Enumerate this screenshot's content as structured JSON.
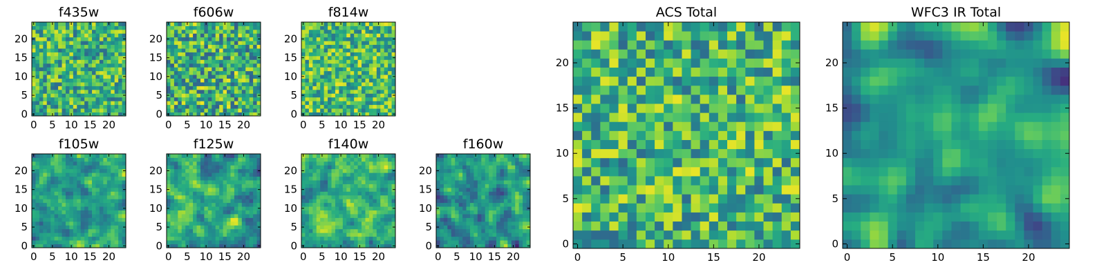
{
  "chart_data": [
    {
      "type": "heatmap",
      "title": "f435w",
      "xticks": [
        0,
        5,
        10,
        15,
        20
      ],
      "yticks": [
        0,
        5,
        10,
        15,
        20
      ],
      "xlim": [
        -0.5,
        24.5
      ],
      "ylim": [
        -0.5,
        24.5
      ],
      "grid": false,
      "colormap": "viridis",
      "seed": 11,
      "smooth": 0,
      "lo": 0.35,
      "hi": 0.95
    },
    {
      "type": "heatmap",
      "title": "f606w",
      "xticks": [
        0,
        5,
        10,
        15,
        20
      ],
      "yticks": [
        0,
        5,
        10,
        15,
        20
      ],
      "xlim": [
        -0.5,
        24.5
      ],
      "ylim": [
        -0.5,
        24.5
      ],
      "grid": false,
      "colormap": "viridis",
      "seed": 23,
      "smooth": 0,
      "lo": 0.3,
      "hi": 0.98
    },
    {
      "type": "heatmap",
      "title": "f814w",
      "xticks": [
        0,
        5,
        10,
        15,
        20
      ],
      "yticks": [
        0,
        5,
        10,
        15,
        20
      ],
      "xlim": [
        -0.5,
        24.5
      ],
      "ylim": [
        -0.5,
        24.5
      ],
      "grid": false,
      "colormap": "viridis",
      "seed": 37,
      "smooth": 0,
      "lo": 0.4,
      "hi": 0.98
    },
    {
      "type": "heatmap",
      "title": "f105w",
      "xticks": [
        0,
        5,
        10,
        15,
        20
      ],
      "yticks": [
        0,
        5,
        10,
        15,
        20
      ],
      "xlim": [
        -0.5,
        24.5
      ],
      "ylim": [
        -0.5,
        24.5
      ],
      "grid": false,
      "colormap": "viridis",
      "seed": 41,
      "smooth": 1,
      "lo": 0.25,
      "hi": 0.95
    },
    {
      "type": "heatmap",
      "title": "f125w",
      "xticks": [
        0,
        5,
        10,
        15,
        20
      ],
      "yticks": [
        0,
        5,
        10,
        15,
        20
      ],
      "xlim": [
        -0.5,
        24.5
      ],
      "ylim": [
        -0.5,
        24.5
      ],
      "grid": false,
      "colormap": "viridis",
      "seed": 53,
      "smooth": 1,
      "lo": 0.2,
      "hi": 0.97
    },
    {
      "type": "heatmap",
      "title": "f140w",
      "xticks": [
        0,
        5,
        10,
        15,
        20
      ],
      "yticks": [
        0,
        5,
        10,
        15,
        20
      ],
      "xlim": [
        -0.5,
        24.5
      ],
      "ylim": [
        -0.5,
        24.5
      ],
      "grid": false,
      "colormap": "viridis",
      "seed": 67,
      "smooth": 1,
      "lo": 0.3,
      "hi": 0.97
    },
    {
      "type": "heatmap",
      "title": "f160w",
      "xticks": [
        0,
        5,
        10,
        15,
        20
      ],
      "yticks": [
        0,
        5,
        10,
        15,
        20
      ],
      "xlim": [
        -0.5,
        24.5
      ],
      "ylim": [
        -0.5,
        24.5
      ],
      "grid": false,
      "colormap": "viridis",
      "seed": 79,
      "smooth": 1,
      "lo": 0.1,
      "hi": 0.92
    },
    {
      "type": "heatmap",
      "title": "ACS Total",
      "xticks": [
        0,
        5,
        10,
        15,
        20
      ],
      "yticks": [
        0,
        5,
        10,
        15,
        20
      ],
      "xlim": [
        -0.5,
        24.5
      ],
      "ylim": [
        -0.5,
        24.5
      ],
      "grid": false,
      "colormap": "viridis",
      "seed": 97,
      "smooth": 0,
      "lo": 0.35,
      "hi": 0.97
    },
    {
      "type": "heatmap",
      "title": "WFC3 IR Total",
      "xticks": [
        0,
        5,
        10,
        15,
        20
      ],
      "yticks": [
        0,
        5,
        10,
        15,
        20
      ],
      "xlim": [
        -0.5,
        24.5
      ],
      "ylim": [
        -0.5,
        24.5
      ],
      "grid": false,
      "colormap": "viridis",
      "seed": 113,
      "smooth": 2,
      "lo": 0.15,
      "hi": 0.97
    }
  ]
}
